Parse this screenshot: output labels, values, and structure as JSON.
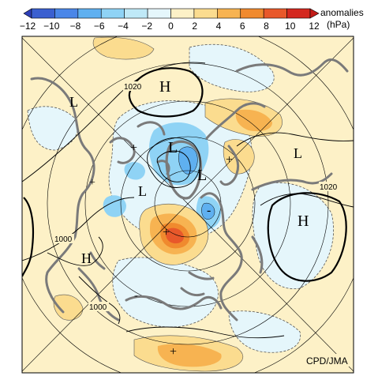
{
  "colorbar": {
    "title": "anomalies",
    "unit": "(hPa)",
    "ticks": [
      "−12",
      "−10",
      "−8",
      "−6",
      "−4",
      "−2",
      "0",
      "2",
      "4",
      "6",
      "8",
      "10",
      "12"
    ],
    "colors": [
      "#3a5fd0",
      "#4a86e8",
      "#5fb0f0",
      "#8fd3f5",
      "#bfe9f7",
      "#e5f6fb",
      "#fdf1c7",
      "#fbdc8f",
      "#f7b351",
      "#f08a2e",
      "#e8582a",
      "#d4281f"
    ]
  },
  "map": {
    "background_positive": "#fdf1c7",
    "background_negative": "#e5f6fb",
    "pressure_systems": [
      {
        "label": "H",
        "kind": "high"
      },
      {
        "label": "H",
        "kind": "high"
      },
      {
        "label": "H",
        "kind": "high"
      },
      {
        "label": "L",
        "kind": "low"
      },
      {
        "label": "L",
        "kind": "low"
      },
      {
        "label": "L",
        "kind": "low"
      },
      {
        "label": "L",
        "kind": "low"
      },
      {
        "label": "L",
        "kind": "low"
      }
    ],
    "isobar_labels": [
      "1020",
      "1020",
      "1000",
      "1000"
    ],
    "anomaly_signs": [
      "+",
      "+",
      "+",
      "+",
      "+",
      "-",
      "-"
    ],
    "credit": "CPD/JMA"
  }
}
